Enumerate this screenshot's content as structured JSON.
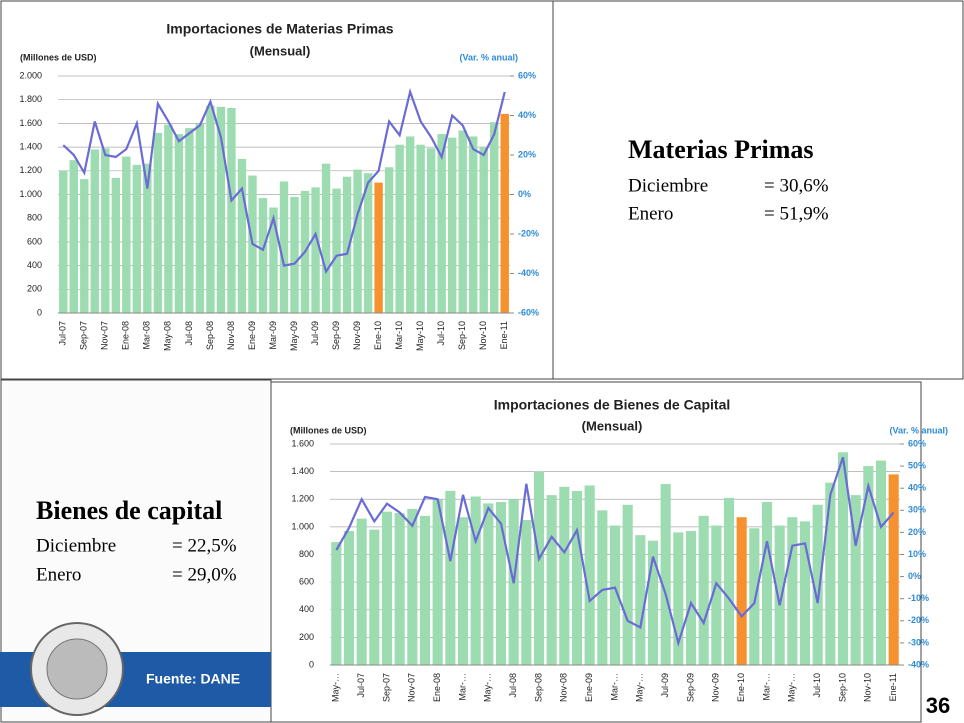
{
  "chart_data": [
    {
      "type": "bar-line",
      "title": "Importaciones de Materias Primas",
      "subtitle": "(Mensual)",
      "y_axis_label": "(Millones de USD)",
      "y2_axis_label": "(Var. % anual)",
      "categories": [
        "Jul-07",
        null,
        "Sep-07",
        null,
        "Nov-07",
        null,
        "Ene-08",
        null,
        "Mar-08",
        null,
        "May-08",
        null,
        "Jul-08",
        null,
        "Sep-08",
        null,
        "Nov-08",
        null,
        "Ene-09",
        null,
        "Mar-09",
        null,
        "May-09",
        null,
        "Jul-09",
        null,
        "Sep-09",
        null,
        "Nov-09",
        null,
        "Ene-10",
        null,
        "Mar-10",
        null,
        "May-10",
        null,
        "Jul-10",
        null,
        "Sep-10",
        null,
        "Nov-10",
        null,
        "Ene-11"
      ],
      "ylim": [
        0,
        2000
      ],
      "yticks": [
        0,
        {
          "value": 200,
          "label": "200"
        },
        {
          "value": 400,
          "label": "400"
        },
        {
          "value": 600,
          "label": "600"
        },
        {
          "value": 800,
          "label": "800"
        },
        {
          "value": 1000,
          "label": "1.000"
        },
        {
          "value": 1200,
          "label": "1.200"
        },
        {
          "value": 1400,
          "label": "1.400"
        },
        {
          "value": 1600,
          "label": "1.600"
        },
        {
          "value": 1800,
          "label": "1.800"
        },
        {
          "value": 2000,
          "label": "2.000"
        }
      ],
      "y2lim": [
        -60,
        60
      ],
      "y2ticks": [
        {
          "value": -60,
          "label": "-60%"
        },
        {
          "value": -40,
          "label": "-40%"
        },
        {
          "value": -20,
          "label": "-20%"
        },
        {
          "value": 0,
          "label": "0%"
        },
        {
          "value": 20,
          "label": "20%"
        },
        {
          "value": 40,
          "label": "40%"
        },
        {
          "value": 60,
          "label": "60%"
        }
      ],
      "grid": true,
      "series": [
        {
          "type": "bar",
          "color": "#9ddcb0",
          "values": [
            1200,
            1290,
            1130,
            1380,
            1390,
            1140,
            1320,
            1250,
            1260,
            1520,
            1590,
            1510,
            1560,
            1600,
            1750,
            1740,
            1730,
            1300,
            1160,
            970,
            890,
            1110,
            980,
            1030,
            1060,
            1260,
            1050,
            1150,
            1210,
            1180,
            1100,
            1230,
            1420,
            1490,
            1420,
            1390,
            1510,
            1480,
            1540,
            1490,
            1400,
            1610,
            1680
          ],
          "colors": [
            "#9ddcb0",
            "#9ddcb0",
            "#9ddcb0",
            "#9ddcb0",
            "#9ddcb0",
            "#9ddcb0",
            "#9ddcb0",
            "#9ddcb0",
            "#9ddcb0",
            "#9ddcb0",
            "#9ddcb0",
            "#9ddcb0",
            "#9ddcb0",
            "#9ddcb0",
            "#9ddcb0",
            "#9ddcb0",
            "#9ddcb0",
            "#9ddcb0",
            "#9ddcb0",
            "#9ddcb0",
            "#9ddcb0",
            "#9ddcb0",
            "#9ddcb0",
            "#9ddcb0",
            "#9ddcb0",
            "#9ddcb0",
            "#9ddcb0",
            "#9ddcb0",
            "#9ddcb0",
            "#9ddcb0",
            "#f5922f",
            "#9ddcb0",
            "#9ddcb0",
            "#9ddcb0",
            "#9ddcb0",
            "#9ddcb0",
            "#9ddcb0",
            "#9ddcb0",
            "#9ddcb0",
            "#9ddcb0",
            "#9ddcb0",
            "#9ddcb0",
            "#f5922f"
          ]
        },
        {
          "type": "line",
          "axis": "y2",
          "color": "#6b6bd6",
          "values": [
            25,
            20,
            11,
            37,
            20,
            19,
            23,
            36,
            3,
            46,
            37,
            27,
            31,
            35,
            47,
            29,
            -3,
            3,
            -25,
            -28,
            -12,
            -36,
            -35,
            -29,
            -20,
            -39,
            -31,
            -30,
            -10,
            6,
            12,
            37,
            30,
            52,
            37,
            29,
            19,
            40,
            35,
            23,
            20,
            30.6,
            51.9
          ]
        }
      ]
    },
    {
      "type": "bar-line",
      "title": "Importaciones de Bienes de Capital",
      "subtitle": "(Mensual)",
      "y_axis_label": "(Millones de USD)",
      "y2_axis_label": "(Var. % anual)",
      "categories": [
        "May-…",
        null,
        "Jul-07",
        null,
        "Sep-07",
        null,
        "Nov-07",
        null,
        "Ene-08",
        null,
        "Mar-…",
        null,
        "May-…",
        null,
        "Jul-08",
        null,
        "Sep-08",
        null,
        "Nov-08",
        null,
        "Ene-09",
        null,
        "Mar-…",
        null,
        "May-…",
        null,
        "Jul-09",
        null,
        "Sep-09",
        null,
        "Nov-09",
        null,
        "Ene-10",
        null,
        "Mar-…",
        null,
        "May-…",
        null,
        "Jul-10",
        null,
        "Sep-10",
        null,
        "Nov-10",
        null,
        "Ene-11"
      ],
      "ylim": [
        0,
        1600
      ],
      "yticks": [
        0,
        {
          "value": 200,
          "label": "200"
        },
        {
          "value": 400,
          "label": "400"
        },
        {
          "value": 600,
          "label": "600"
        },
        {
          "value": 800,
          "label": "800"
        },
        {
          "value": 1000,
          "label": "1.000"
        },
        {
          "value": 1200,
          "label": "1.200"
        },
        {
          "value": 1400,
          "label": "1.400"
        },
        {
          "value": 1600,
          "label": "1.600"
        }
      ],
      "y2lim": [
        -40,
        60
      ],
      "y2ticks": [
        {
          "value": -40,
          "label": "-40%"
        },
        {
          "value": -30,
          "label": "-30%"
        },
        {
          "value": -20,
          "label": "-20%"
        },
        {
          "value": -10,
          "label": "-10%"
        },
        {
          "value": 0,
          "label": "0%"
        },
        {
          "value": 10,
          "label": "10%"
        },
        {
          "value": 20,
          "label": "20%"
        },
        {
          "value": 30,
          "label": "30%"
        },
        {
          "value": 40,
          "label": "40%"
        },
        {
          "value": 50,
          "label": "50%"
        },
        {
          "value": 60,
          "label": "60%"
        }
      ],
      "grid": true,
      "series": [
        {
          "type": "bar",
          "color": "#9ddcb0",
          "values": [
            890,
            970,
            1060,
            980,
            1110,
            1100,
            1130,
            1080,
            1200,
            1260,
            1070,
            1220,
            1170,
            1180,
            1200,
            1050,
            1400,
            1230,
            1290,
            1260,
            1300,
            1120,
            1010,
            1160,
            940,
            900,
            1310,
            960,
            970,
            1080,
            1010,
            1210,
            1070,
            990,
            1180,
            1010,
            1070,
            1040,
            1160,
            1320,
            1540,
            1230,
            1440,
            1480,
            1380
          ],
          "colors": [
            "#9ddcb0",
            "#9ddcb0",
            "#9ddcb0",
            "#9ddcb0",
            "#9ddcb0",
            "#9ddcb0",
            "#9ddcb0",
            "#9ddcb0",
            "#9ddcb0",
            "#9ddcb0",
            "#9ddcb0",
            "#9ddcb0",
            "#9ddcb0",
            "#9ddcb0",
            "#9ddcb0",
            "#9ddcb0",
            "#9ddcb0",
            "#9ddcb0",
            "#9ddcb0",
            "#9ddcb0",
            "#9ddcb0",
            "#9ddcb0",
            "#9ddcb0",
            "#9ddcb0",
            "#9ddcb0",
            "#9ddcb0",
            "#9ddcb0",
            "#9ddcb0",
            "#9ddcb0",
            "#9ddcb0",
            "#9ddcb0",
            "#9ddcb0",
            "#f5922f",
            "#9ddcb0",
            "#9ddcb0",
            "#9ddcb0",
            "#9ddcb0",
            "#9ddcb0",
            "#9ddcb0",
            "#9ddcb0",
            "#9ddcb0",
            "#9ddcb0",
            "#9ddcb0",
            "#9ddcb0",
            "#f5922f"
          ]
        },
        {
          "type": "line",
          "axis": "y2",
          "color": "#6b6bd6",
          "values": [
            12,
            22,
            35,
            25,
            33,
            29,
            23,
            36,
            35,
            7,
            37,
            16,
            31,
            24,
            -3,
            42,
            8,
            18,
            11,
            21,
            -11,
            -6,
            -5,
            -20,
            -23,
            9,
            -8,
            -30,
            -12,
            -21,
            -3,
            -10,
            -18,
            -12,
            16,
            -13,
            14,
            15,
            -12,
            37,
            54,
            14,
            41,
            22.5,
            29.0
          ]
        }
      ]
    }
  ],
  "panels": {
    "materias": {
      "heading": "Materias Primas",
      "rows": [
        {
          "label": "Diciembre",
          "value": "= 30,6%"
        },
        {
          "label": "Enero",
          "value": "= 51,9%"
        }
      ]
    },
    "capital": {
      "heading": "Bienes de capital",
      "rows": [
        {
          "label": "Diciembre",
          "value": "= 22,5%"
        },
        {
          "label": "Enero",
          "value": "= 29,0%"
        }
      ]
    },
    "source": "Fuente: DANE",
    "page_number": "36"
  }
}
